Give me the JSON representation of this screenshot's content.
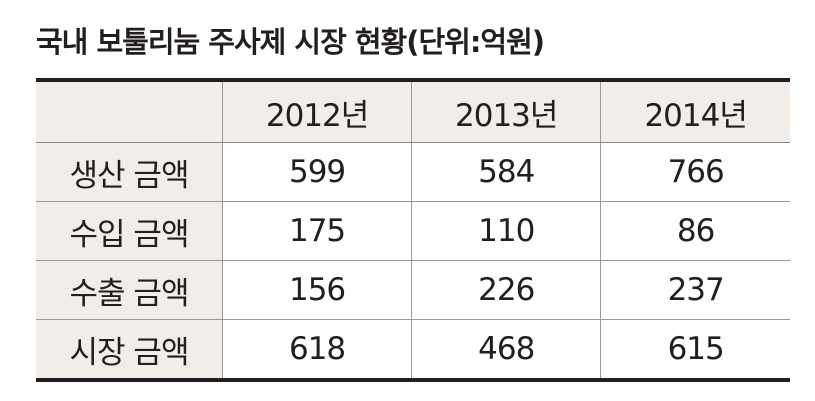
{
  "title": "국내 보툴리눔 주사제 시장 현황(단위:억원)",
  "chart_data": {
    "type": "table",
    "title": "국내 보툴리눔 주사제 시장 현황(단위:억원)",
    "columns": [
      "",
      "2012년",
      "2013년",
      "2014년"
    ],
    "rows": [
      {
        "label": "생산 금액",
        "values": [
          599,
          584,
          766
        ]
      },
      {
        "label": "수입 금액",
        "values": [
          175,
          110,
          86
        ]
      },
      {
        "label": "수출 금액",
        "values": [
          156,
          226,
          237
        ]
      },
      {
        "label": "시장 금액",
        "values": [
          618,
          468,
          615
        ]
      }
    ]
  }
}
